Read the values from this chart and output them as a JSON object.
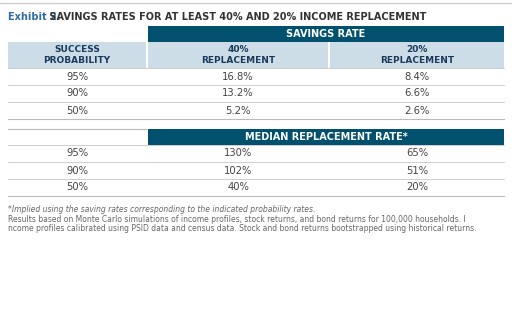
{
  "title_bold": "Exhibit 2.",
  "title_rest": " SAVINGS RATES FOR AT LEAST 40% AND 20% INCOME REPLACEMENT",
  "header_dark_color": "#00506e",
  "header_light_color": "#ccdde8",
  "header_text_color": "#ffffff",
  "subheader_text_color": "#1a3a5c",
  "row_text_color": "#444444",
  "line_color": "#bbbbbb",
  "bg_color": "#ffffff",
  "table1_header_top": "SAVINGS RATE",
  "table1_col1": "SUCCESS\nPROBABILITY",
  "table1_col2": "40%\nREPLACEMENT",
  "table1_col3": "20%\nREPLACEMENT",
  "table1_rows": [
    [
      "95%",
      "16.8%",
      "8.4%"
    ],
    [
      "90%",
      "13.2%",
      "6.6%"
    ],
    [
      "50%",
      "5.2%",
      "2.6%"
    ]
  ],
  "table2_header_top": "MEDIAN REPLACEMENT RATE*",
  "table2_rows": [
    [
      "95%",
      "130%",
      "65%"
    ],
    [
      "90%",
      "102%",
      "51%"
    ],
    [
      "50%",
      "40%",
      "20%"
    ]
  ],
  "footnote1": "*Implied using the saving rates corresponding to the indicated probability rates.",
  "footnote2": "Results based on Monte Carlo simulations of income profiles, stock returns, and bond returns for 100,000 households. I",
  "footnote3": "ncome profiles calibrated using PSID data and census data. Stock and bond returns bootstrapped using historical returns.",
  "footnote_color": "#666666",
  "title_bold_color": "#2e6da4",
  "title_rest_color": "#333333",
  "top_border_color": "#cccccc"
}
